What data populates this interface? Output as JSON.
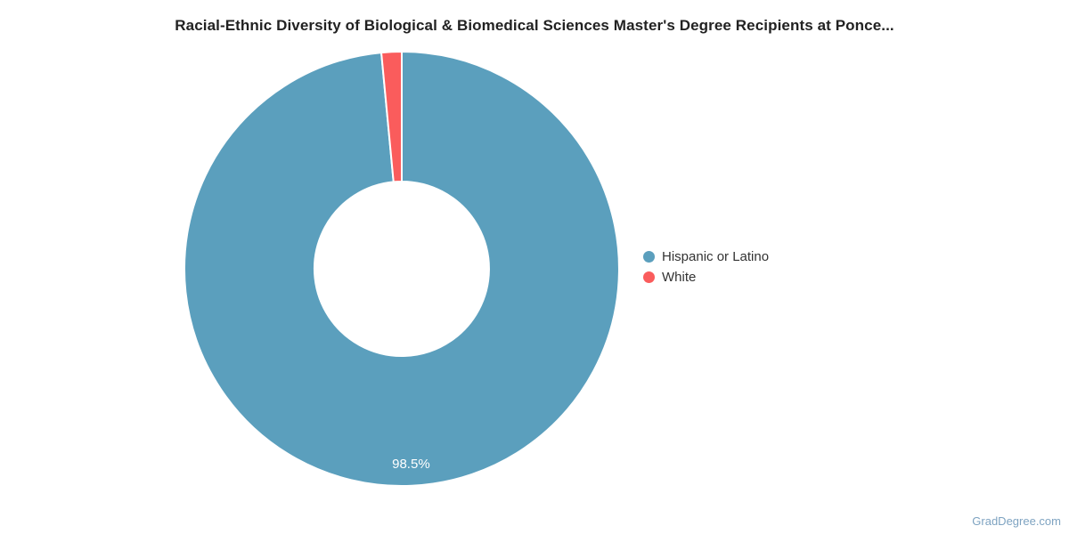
{
  "title": "Racial-Ethnic Diversity of Biological & Biomedical Sciences Master's Degree Recipients at Ponce...",
  "watermark": "GradDegree.com",
  "chart_data": {
    "type": "pie",
    "subtype": "donut",
    "title": "Racial-Ethnic Diversity of Biological & Biomedical Sciences Master's Degree Recipients at Ponce...",
    "legend_position": "right",
    "total_percent": 100,
    "slices": [
      {
        "name": "Hispanic or Latino",
        "value": 98.5,
        "color": "#5B9FBD",
        "label": "98.5%"
      },
      {
        "name": "White",
        "value": 1.5,
        "color": "#FA5C5C",
        "label": ""
      }
    ],
    "colors": {
      "slice_border": "#ffffff",
      "label_text": "#ffffff",
      "legend_text": "#333333",
      "title_text": "#222222",
      "watermark_text": "#7EA3C1"
    }
  }
}
